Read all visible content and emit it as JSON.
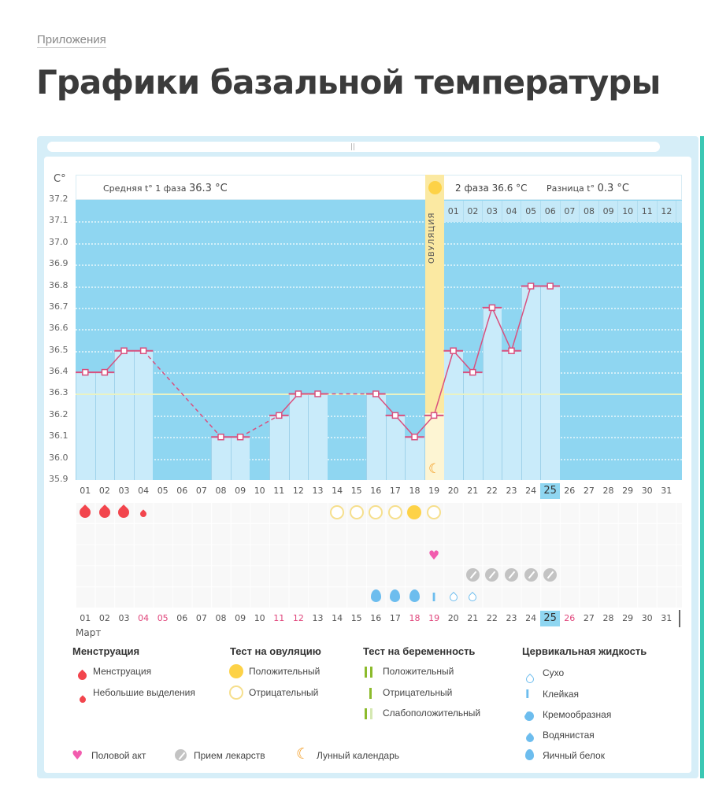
{
  "breadcrumb": "Приложения",
  "title": "Графики базальной температуры",
  "chart_header": {
    "unit_label": "C°",
    "phase1_label": "Средняя t° 1 фаза",
    "phase1_value": "36.3 °C",
    "phase2_label": "2 фаза",
    "phase2_value": "36.6 °C",
    "diff_label": "Разница t°",
    "diff_value": "0.3 °C",
    "ovulation_label": "ОВУЛЯЦИЯ",
    "cycle_days": [
      "01",
      "02",
      "03",
      "04",
      "05",
      "06",
      "07",
      "08",
      "09",
      "10",
      "11",
      "12"
    ]
  },
  "chart_data": {
    "type": "line",
    "title": "Графики базальной температуры",
    "xlabel": "Март",
    "ylabel": "C°",
    "ylim": [
      35.9,
      37.2
    ],
    "yticks": [
      "37.2",
      "37.1",
      "37.0",
      "36.9",
      "36.8",
      "36.7",
      "36.6",
      "36.5",
      "36.4",
      "36.3",
      "36.2",
      "36.1",
      "36.0",
      "35.9"
    ],
    "categories": [
      "01",
      "02",
      "03",
      "04",
      "05",
      "06",
      "07",
      "08",
      "09",
      "10",
      "11",
      "12",
      "13",
      "14",
      "15",
      "16",
      "17",
      "18",
      "19",
      "20",
      "21",
      "22",
      "23",
      "24",
      "25",
      "26",
      "27",
      "28",
      "29",
      "30",
      "31"
    ],
    "series": [
      {
        "name": "Базальная температура",
        "values": [
          36.4,
          36.4,
          36.5,
          36.5,
          null,
          null,
          null,
          36.1,
          36.1,
          null,
          36.2,
          36.3,
          36.3,
          null,
          null,
          36.3,
          36.2,
          36.1,
          36.2,
          36.5,
          36.4,
          36.7,
          36.5,
          36.8,
          36.8,
          null,
          null,
          null,
          null,
          null,
          null
        ]
      }
    ],
    "average_line": 36.3,
    "ovulation_day": "19",
    "today": "25",
    "grid": true,
    "red_days": [
      "04",
      "05",
      "11",
      "12",
      "18",
      "19",
      "26"
    ]
  },
  "markers": {
    "menstruation": {
      "01": "full",
      "02": "full",
      "03": "full",
      "04": "small"
    },
    "ovulation_test": {
      "14": "negative",
      "15": "negative",
      "16": "negative",
      "17": "negative",
      "18": "positive",
      "19": "negative"
    },
    "intercourse": [
      "19"
    ],
    "medication": [
      "21",
      "22",
      "23",
      "24",
      "25"
    ],
    "cervical_fluid": {
      "16": "egg_white",
      "17": "egg_white",
      "18": "egg_white",
      "19": "sticky",
      "20": "dry",
      "21": "dry"
    }
  },
  "legend": {
    "menstruation": {
      "title": "Менструация",
      "items": [
        "Менструация",
        "Небольшие выделения"
      ]
    },
    "ovulation_test": {
      "title": "Тест на овуляцию",
      "items": [
        "Положительный",
        "Отрицательный"
      ]
    },
    "pregnancy_test": {
      "title": "Тест на беременность",
      "items": [
        "Положительный",
        "Отрицательный",
        "Слабоположительный"
      ]
    },
    "cervical_fluid": {
      "title": "Цервикальная жидкость",
      "items": [
        "Сухо",
        "Клейкая",
        "Кремообразная",
        "Водянистая",
        "Яичный белок"
      ]
    },
    "bottom": [
      "Половой акт",
      "Прием лекарств",
      "Лунный календарь"
    ]
  },
  "colors": {
    "plot_bg": "#8fd6f1",
    "bar": "#c9ebfa",
    "line": "#e0457b",
    "ovulation": "#fbe9a2",
    "menstruation": "#f2454d",
    "ovulation_positive": "#fdd247",
    "heart": "#f25cae",
    "fluid": "#6dbdee"
  }
}
